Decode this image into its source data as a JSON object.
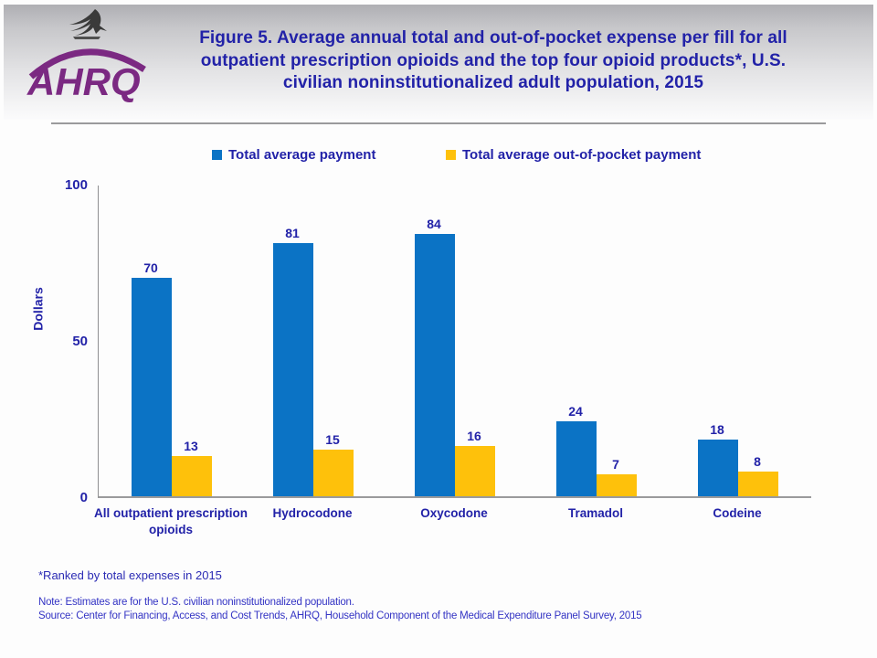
{
  "header": {
    "title": "Figure 5. Average annual total and out-of-pocket expense per fill for all outpatient prescription opioids and the top four opioid products*, U.S. civilian noninstitutionalized adult population, 2015",
    "logo_text": "AHRQ"
  },
  "colors": {
    "title_text": "#2222A8",
    "axis_text": "#2222A8",
    "footnote_text": "#3434C4",
    "logo_purple": "#7B2982",
    "eagle_gray": "#3a3a3a",
    "axis_line": "#9a9a9c",
    "bar_blue": "#0B73C5",
    "bar_yellow": "#FEC10B"
  },
  "chart_data": {
    "type": "bar",
    "title": "Figure 5. Average annual total and out-of-pocket expense per fill for all outpatient prescription opioids and the top four opioid products*, U.S. civilian noninstitutionalized adult population, 2015",
    "categories": [
      "All outpatient prescription opioids",
      "Hydrocodone",
      "Oxycodone",
      "Tramadol",
      "Codeine"
    ],
    "series": [
      {
        "name": "Total average payment",
        "color": "#0B73C5",
        "values": [
          70,
          81,
          84,
          24,
          18
        ]
      },
      {
        "name": "Total average out-of-pocket payment",
        "color": "#FEC10B",
        "values": [
          13,
          15,
          16,
          7,
          8
        ]
      }
    ],
    "xlabel": "",
    "ylabel": "Dollars",
    "ylim": [
      0,
      100
    ],
    "yticks": [
      0,
      50,
      100
    ],
    "grid": false,
    "legend_position": "top"
  },
  "footnotes": {
    "ranked": "*Ranked by total expenses in 2015",
    "note": "Note: Estimates are for the U.S. civilian noninstitutionalized population.",
    "source": "Source: Center for Financing, Access, and Cost Trends, AHRQ, Household Component of the Medical Expenditure Panel Survey, 2015"
  }
}
